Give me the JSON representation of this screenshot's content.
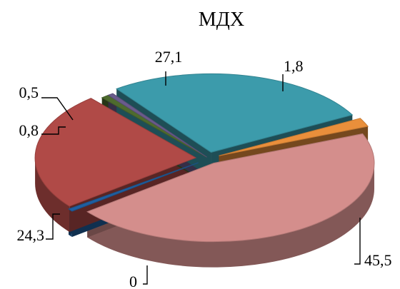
{
  "chart_data": {
    "type": "pie",
    "title": "МДХ",
    "slices": [
      {
        "label": "45,5",
        "value": 45.5,
        "color": "#d48e8c"
      },
      {
        "label": "0",
        "value": 0,
        "color": "#1f5fa0"
      },
      {
        "label": "24,3",
        "value": 24.3,
        "color": "#b04a47"
      },
      {
        "label": "0,8",
        "value": 0.8,
        "color": "#4e6b2e"
      },
      {
        "label": "0,5",
        "value": 0.5,
        "color": "#6a5b8c"
      },
      {
        "label": "27,1",
        "value": 27.1,
        "color": "#3c9bab"
      },
      {
        "label": "1,8",
        "value": 1.8,
        "color": "#e98f3b"
      }
    ]
  }
}
